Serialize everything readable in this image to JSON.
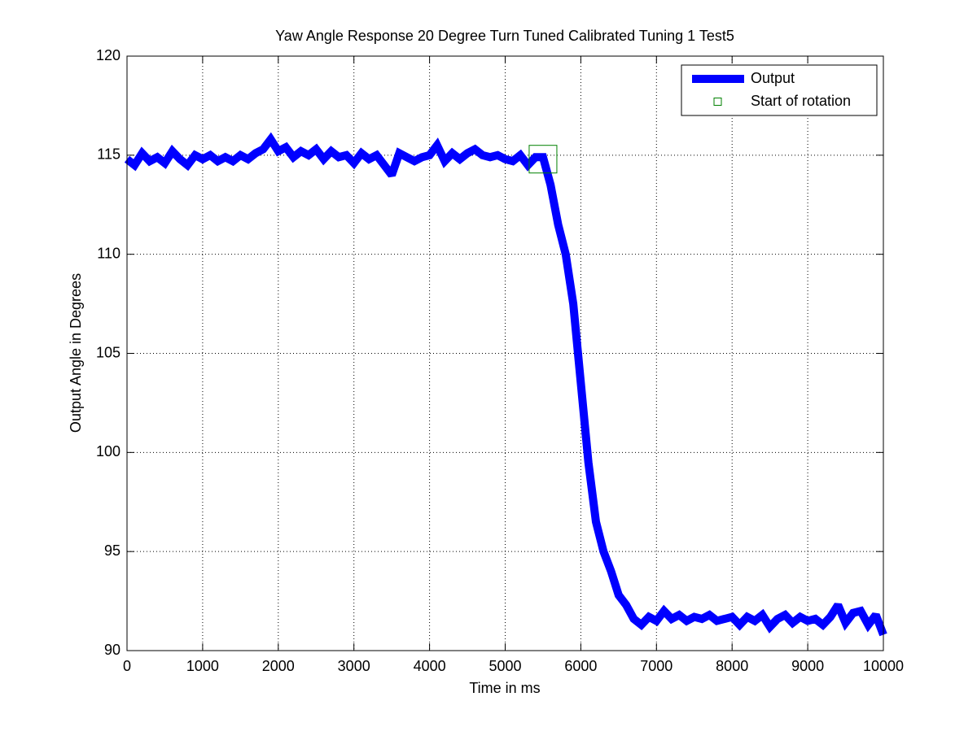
{
  "chart_data": {
    "type": "line",
    "title": "Yaw Angle Response 20 Degree Turn Tuned Calibrated Tuning 1 Test5",
    "xlabel": "Time in ms",
    "ylabel": "Output Angle in Degrees",
    "xlim": [
      0,
      10000
    ],
    "ylim": [
      90,
      120
    ],
    "xticks": [
      0,
      1000,
      2000,
      3000,
      4000,
      5000,
      6000,
      7000,
      8000,
      9000,
      10000
    ],
    "yticks": [
      90,
      95,
      100,
      105,
      110,
      115,
      120
    ],
    "grid": true,
    "legend": "northeast",
    "series": [
      {
        "name": "Output",
        "color": "#0000ff",
        "x": [
          0,
          100,
          200,
          300,
          400,
          500,
          600,
          700,
          800,
          900,
          1000,
          1100,
          1200,
          1300,
          1400,
          1500,
          1600,
          1700,
          1800,
          1900,
          2000,
          2100,
          2200,
          2300,
          2400,
          2500,
          2600,
          2700,
          2800,
          2900,
          3000,
          3100,
          3200,
          3300,
          3400,
          3500,
          3600,
          3700,
          3800,
          3900,
          4000,
          4100,
          4200,
          4300,
          4400,
          4500,
          4600,
          4700,
          4800,
          4900,
          5000,
          5100,
          5200,
          5300,
          5400,
          5500,
          5600,
          5700,
          5800,
          5900,
          6000,
          6100,
          6200,
          6300,
          6400,
          6500,
          6600,
          6700,
          6800,
          6900,
          7000,
          7100,
          7200,
          7300,
          7400,
          7500,
          7600,
          7700,
          7800,
          7900,
          8000,
          8100,
          8200,
          8300,
          8400,
          8500,
          8600,
          8700,
          8800,
          8900,
          9000,
          9100,
          9200,
          9300,
          9400,
          9500,
          9600,
          9700,
          9800,
          9900,
          10000
        ],
        "values": [
          114.8,
          114.5,
          115.1,
          114.7,
          114.9,
          114.6,
          115.2,
          114.8,
          114.5,
          115.0,
          114.8,
          115.0,
          114.7,
          114.9,
          114.7,
          115.0,
          114.8,
          115.1,
          115.3,
          115.8,
          115.2,
          115.4,
          114.9,
          115.2,
          115.0,
          115.3,
          114.8,
          115.2,
          114.9,
          115.0,
          114.6,
          115.1,
          114.8,
          115.0,
          114.5,
          114.0,
          115.1,
          114.9,
          114.7,
          114.9,
          115.0,
          115.5,
          114.7,
          115.1,
          114.8,
          115.1,
          115.3,
          115.0,
          114.9,
          115.0,
          114.8,
          114.7,
          115.0,
          114.5,
          114.9,
          114.9,
          113.5,
          111.5,
          110.0,
          107.5,
          103.5,
          99.5,
          96.5,
          95.0,
          94.0,
          92.8,
          92.3,
          91.6,
          91.3,
          91.7,
          91.5,
          92.0,
          91.6,
          91.8,
          91.5,
          91.7,
          91.6,
          91.8,
          91.5,
          91.6,
          91.7,
          91.3,
          91.7,
          91.5,
          91.8,
          91.2,
          91.6,
          91.8,
          91.4,
          91.7,
          91.5,
          91.6,
          91.3,
          91.7,
          92.3,
          91.4,
          91.9,
          92.0,
          91.3,
          91.8,
          90.8
        ]
      },
      {
        "name": "Start of rotation",
        "color": "#008000",
        "marker": "square",
        "x": [
          5500
        ],
        "values": [
          114.8
        ]
      }
    ]
  }
}
